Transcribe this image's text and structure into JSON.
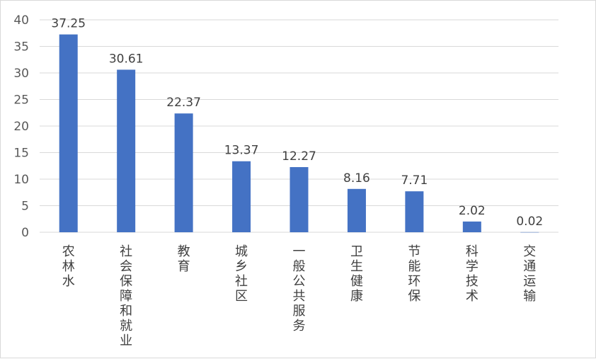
{
  "chart_data": {
    "type": "bar",
    "categories": [
      "农林水",
      "社会保障和就业",
      "教育",
      "城乡社区",
      "一般公共服务",
      "卫生健康",
      "节能环保",
      "科学技术",
      "交通运输"
    ],
    "values": [
      37.25,
      30.61,
      22.37,
      13.37,
      12.27,
      8.16,
      7.71,
      2.02,
      0.02
    ],
    "data_labels": [
      "37.25",
      "30.61",
      "22.37",
      "13.37",
      "12.27",
      "8.16",
      "7.71",
      "2.02",
      "0.02"
    ],
    "yticks": [
      "0",
      "5",
      "10",
      "15",
      "20",
      "25",
      "30",
      "35",
      "40"
    ],
    "ylim": [
      0,
      40
    ],
    "title": "",
    "xlabel": "",
    "ylabel": "",
    "grid": true,
    "legend": "none",
    "bar_color": "#4472c4",
    "grid_color": "#d9d9d9"
  }
}
